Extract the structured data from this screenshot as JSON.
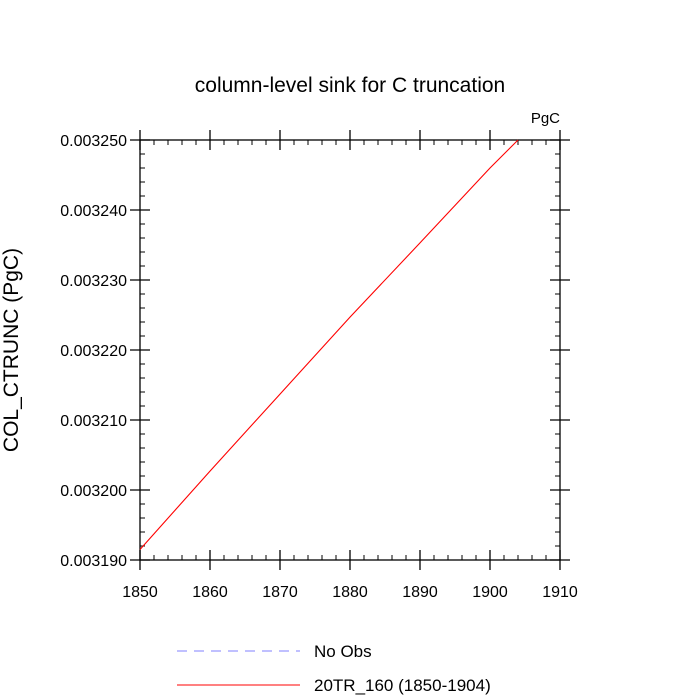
{
  "chart_data": {
    "type": "line",
    "title": "column-level sink for C truncation",
    "units_label": "PgC",
    "ylabel": "COL_CTRUNC  (PgC)",
    "xlabel": "",
    "xlim": [
      1850,
      1910
    ],
    "ylim": [
      0.00319,
      0.00325
    ],
    "x_ticks": [
      1850,
      1860,
      1870,
      1880,
      1890,
      1900,
      1910
    ],
    "x_tick_labels": [
      "1850",
      "1860",
      "1870",
      "1880",
      "1890",
      "1900",
      "1910"
    ],
    "y_ticks": [
      0.00319,
      0.0032,
      0.00321,
      0.00322,
      0.00323,
      0.00324,
      0.00325
    ],
    "y_tick_labels": [
      "0.003190",
      "0.003200",
      "0.003210",
      "0.003220",
      "0.003230",
      "0.003240",
      "0.003250"
    ],
    "grid": false,
    "legend_position": "bottom",
    "series": [
      {
        "name": "No Obs",
        "color": "#8080ff",
        "dash": "dashed",
        "x": [],
        "y": []
      },
      {
        "name": "20TR_160 (1850-1904)",
        "color": "#ff0000",
        "dash": "solid",
        "x": [
          1850,
          1860,
          1870,
          1880,
          1890,
          1900,
          1904
        ],
        "y": [
          0.0031915,
          0.0032027,
          0.0032137,
          0.0032247,
          0.0032353,
          0.003246,
          0.00325
        ]
      }
    ]
  }
}
